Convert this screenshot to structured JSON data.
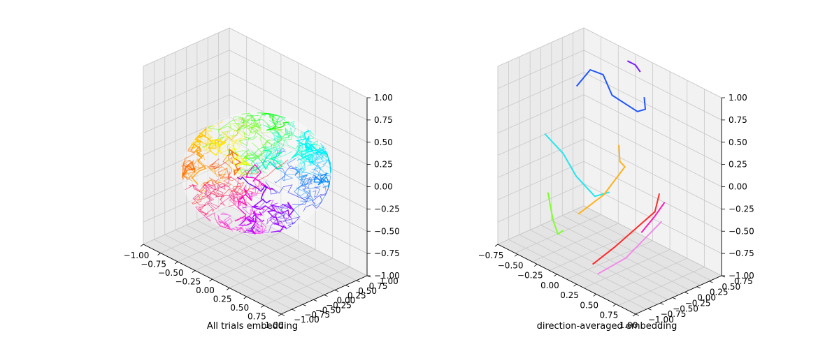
{
  "chart_data": [
    {
      "type": "scatter3d",
      "title": "",
      "xlabel": "",
      "ylabel": "",
      "zlabel": "",
      "caption": "All trials embedding",
      "xlim": [
        -1.0,
        1.0
      ],
      "ylim": [
        -1.0,
        1.0
      ],
      "zlim": [
        -1.0,
        1.0
      ],
      "x_ticks": [
        "−1.00",
        "−0.75",
        "−0.50",
        "−0.25",
        "0.00",
        "0.25",
        "0.50",
        "0.75",
        "1.00"
      ],
      "y_ticks": [
        "−1.00",
        "−0.75",
        "−0.50",
        "−0.25",
        "0.00",
        "0.25",
        "0.50",
        "0.75",
        "1.00"
      ],
      "z_ticks": [
        "−1.00",
        "−0.75",
        "−0.50",
        "−0.25",
        "0.00",
        "0.25",
        "0.50",
        "0.75",
        "1.00"
      ],
      "grid": true,
      "description_values": {
        "surface": "unit sphere",
        "trajectory_color_map": "hue by direction"
      }
    },
    {
      "type": "line3d",
      "title": "",
      "xlabel": "",
      "ylabel": "",
      "zlabel": "",
      "caption": "direction-averaged embedding",
      "xlim": [
        -0.75,
        1.0
      ],
      "ylim": [
        -0.75,
        0.75
      ],
      "zlim": [
        -1.0,
        1.0
      ],
      "x_ticks": [
        "−0.75",
        "−0.50",
        "−0.25",
        "0.00",
        "0.25",
        "0.50",
        "0.75",
        "1.00"
      ],
      "y_ticks": [
        "−1.00",
        "−0.75",
        "−0.50",
        "−0.25",
        "0.00",
        "0.25",
        "0.50",
        "0.75"
      ],
      "z_ticks": [
        "−1.00",
        "−0.75",
        "−0.50",
        "−0.25",
        "0.00",
        "0.25",
        "0.50",
        "0.75",
        "1.00"
      ],
      "grid": true,
      "series": [
        {
          "color": "#7a1dff",
          "points": [
            [
              -0.05,
              0.55,
              1.0
            ],
            [
              0.05,
              0.55,
              1.0
            ],
            [
              0.15,
              0.5,
              0.98
            ]
          ]
        },
        {
          "color": "#1f55ff",
          "points": [
            [
              -0.55,
              0.35,
              0.55
            ],
            [
              -0.45,
              0.45,
              0.75
            ],
            [
              -0.25,
              0.4,
              0.8
            ],
            [
              -0.1,
              0.35,
              0.65
            ],
            [
              0.15,
              0.45,
              0.55
            ],
            [
              0.25,
              0.45,
              0.62
            ],
            [
              0.2,
              0.5,
              0.72
            ]
          ]
        },
        {
          "color": "#22e6f0",
          "points": [
            [
              -0.7,
              0.0,
              0.05
            ],
            [
              -0.5,
              0.05,
              -0.1
            ],
            [
              -0.3,
              0.0,
              -0.25
            ],
            [
              -0.1,
              0.05,
              -0.4
            ],
            [
              0.05,
              0.1,
              -0.3
            ]
          ]
        },
        {
          "color": "#ffb11a",
          "points": [
            [
              -0.05,
              0.4,
              0.1
            ],
            [
              0.0,
              0.35,
              -0.05
            ],
            [
              0.1,
              0.3,
              -0.05
            ],
            [
              0.05,
              0.0,
              -0.3
            ],
            [
              -0.2,
              -0.1,
              -0.6
            ]
          ]
        },
        {
          "color": "#7dff2e",
          "points": [
            [
              -0.55,
              -0.15,
              -0.5
            ],
            [
              -0.45,
              -0.2,
              -0.75
            ],
            [
              -0.35,
              -0.25,
              -0.85
            ],
            [
              -0.25,
              -0.3,
              -0.75
            ]
          ]
        },
        {
          "color": "#ff2a2a",
          "points": [
            [
              0.2,
              -0.4,
              -0.9
            ],
            [
              0.4,
              -0.3,
              -0.65
            ],
            [
              0.6,
              -0.1,
              -0.35
            ],
            [
              0.7,
              0.0,
              -0.2
            ],
            [
              0.72,
              0.05,
              0.0
            ]
          ]
        },
        {
          "color": "#ff1ab3",
          "points": [
            [
              0.6,
              -0.1,
              -0.45
            ],
            [
              0.7,
              0.0,
              -0.25
            ],
            [
              0.75,
              0.1,
              -0.1
            ]
          ]
        },
        {
          "color": "#f08ce8",
          "points": [
            [
              0.3,
              -0.45,
              -0.95
            ],
            [
              0.55,
              -0.3,
              -0.7
            ],
            [
              0.75,
              0.05,
              -0.3
            ]
          ]
        }
      ]
    }
  ]
}
